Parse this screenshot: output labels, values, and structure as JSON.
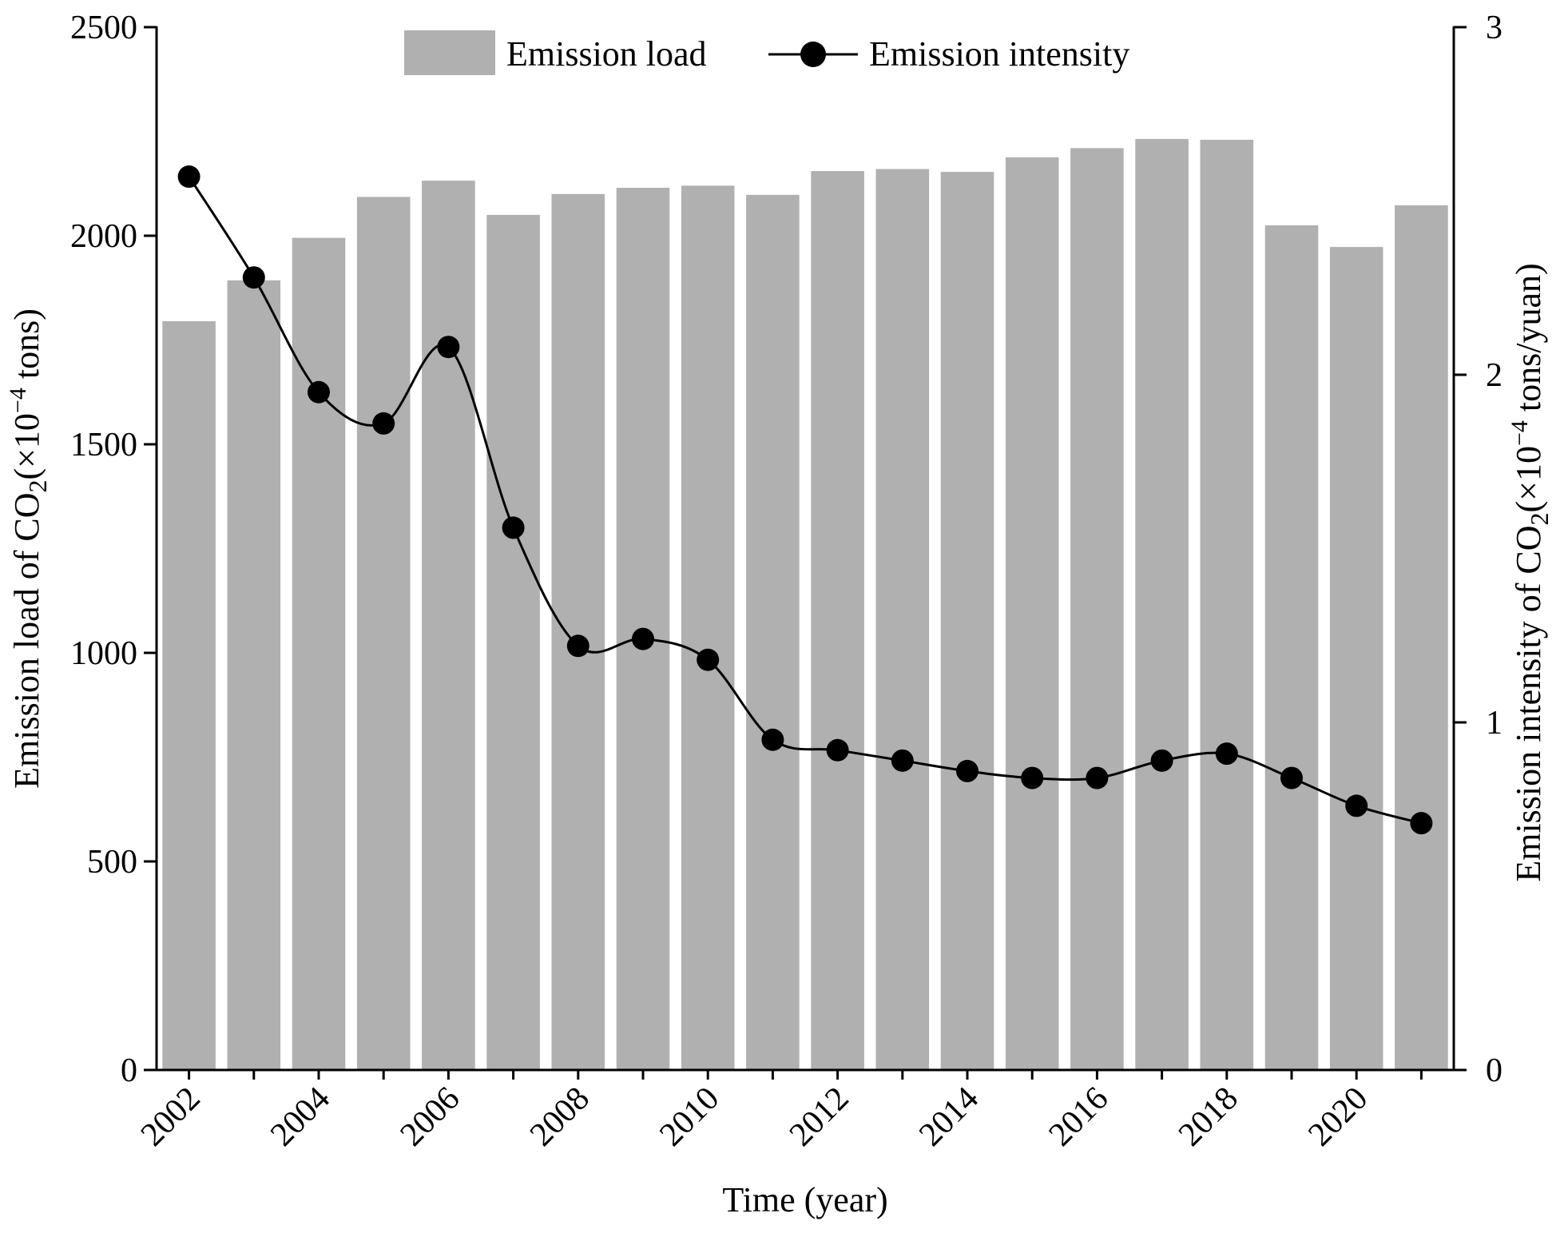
{
  "chart_data": {
    "type": "bar",
    "xlabel": "Time (year)",
    "ylabel_left": {
      "prefix": "Emission load of CO",
      "sub": "2",
      "mid": "(×10",
      "sup": "−4",
      "suffix": " tons)"
    },
    "ylabel_right": {
      "prefix": "Emission intensity of CO",
      "sub": "2",
      "mid": "(×10",
      "sup": "−4",
      "suffix": " tons/yuan)"
    },
    "categories": [
      "2002",
      "2003",
      "2004",
      "2005",
      "2006",
      "2007",
      "2008",
      "2009",
      "2010",
      "2011",
      "2012",
      "2013",
      "2014",
      "2015",
      "2016",
      "2017",
      "2018",
      "2019",
      "2020",
      "2021"
    ],
    "x_tick_labels": [
      "2002",
      "2004",
      "2006",
      "2008",
      "2010",
      "2012",
      "2014",
      "2016",
      "2018",
      "2020"
    ],
    "ylim_left": [
      0,
      2500
    ],
    "yticks_left": [
      "0",
      "500",
      "1000",
      "1500",
      "2000",
      "2500"
    ],
    "ylim_right": [
      0,
      3
    ],
    "yticks_right": [
      "0",
      "1",
      "2",
      "3"
    ],
    "grid": false,
    "legend_position": "top-center",
    "series": [
      {
        "name": "Emission load",
        "type": "bar",
        "axis": "left",
        "color": "#b0b0b0",
        "values": [
          1795,
          1893,
          1995,
          2093,
          2132,
          2050,
          2100,
          2115,
          2120,
          2098,
          2155,
          2160,
          2153,
          2188,
          2210,
          2232,
          2230,
          2025,
          1973,
          2073
        ]
      },
      {
        "name": "Emission intensity",
        "type": "line",
        "axis": "right",
        "color": "#000000",
        "marker": "filled-circle",
        "smooth": true,
        "values": [
          2.57,
          2.28,
          1.95,
          1.86,
          2.08,
          1.56,
          1.22,
          1.24,
          1.18,
          0.95,
          0.92,
          0.89,
          0.86,
          0.84,
          0.84,
          0.89,
          0.91,
          0.84,
          0.76,
          0.71
        ]
      }
    ]
  }
}
